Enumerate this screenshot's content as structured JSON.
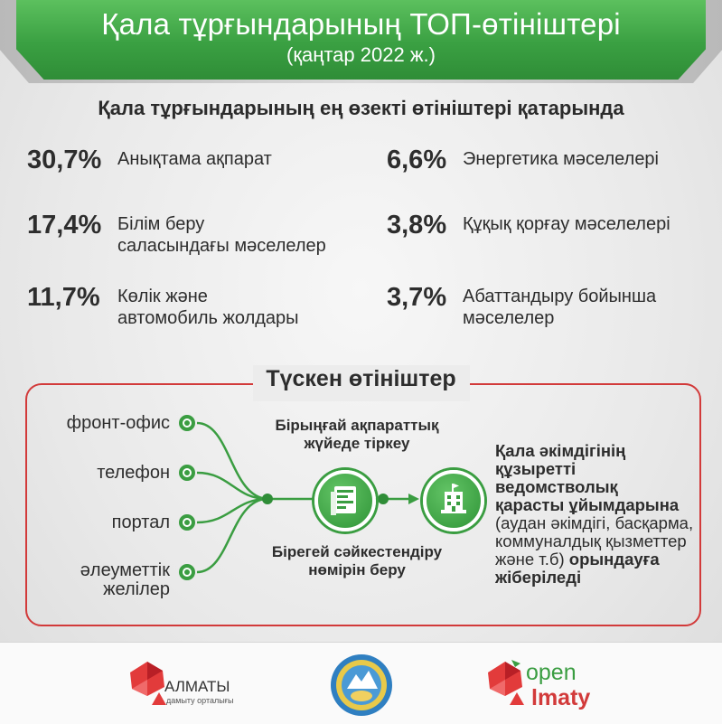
{
  "banner": {
    "title": "Қала тұрғындарының ТОП-өтініштері",
    "subtitle": "(қаңтар 2022 ж.)"
  },
  "headline": "Қала тұрғындарының ең өзекті өтініштері қатарында",
  "stats_left": [
    {
      "pct": "30,7%",
      "label_lines": [
        "Анықтама ақпарат"
      ]
    },
    {
      "pct": "17,4%",
      "label_lines": [
        "Білім беру",
        "саласындағы мәселелер"
      ]
    },
    {
      "pct": "11,7%",
      "label_lines": [
        "Көлік және",
        "автомобиль жолдары"
      ]
    }
  ],
  "stats_right": [
    {
      "pct": "6,6%",
      "label_lines": [
        "Энергетика мәселелері"
      ]
    },
    {
      "pct": "3,8%",
      "label_lines": [
        "Құқық қорғау мәселелері"
      ]
    },
    {
      "pct": "3,7%",
      "label_lines": [
        "Абаттандыру бойынша",
        "мәселелер"
      ]
    }
  ],
  "flow": {
    "title": "Түскен өтініштер",
    "channels": [
      "фронт-офис",
      "телефон",
      "портал",
      "әлеуметтік",
      "желілер"
    ],
    "register_lines": [
      "Бірыңғай ақпараттық",
      "жүйеде тіркеу"
    ],
    "number_lines": [
      "Бірегей сәйкестендіру",
      "нөмірін беру"
    ],
    "result": {
      "bold_lines": [
        "Қала әкімдігінің",
        "құзыретті ведомстволық",
        "қарасты ұйымдарына"
      ],
      "normal_lines": [
        "(аудан әкімдігі, басқарма,",
        "коммуналдық қызметтер",
        "және т.б)"
      ],
      "bold_tail": "орындауға",
      "bold_last": "жіберіледі"
    }
  },
  "footer": {
    "almaty_name": "АЛМАТЫ",
    "almaty_sub": "дамыту орталығы",
    "open_top": "open",
    "open_bottom": "lmaty"
  },
  "colors": {
    "green": "#3a9d41",
    "red": "#d23a3a",
    "banner_green": "#3aa042"
  }
}
